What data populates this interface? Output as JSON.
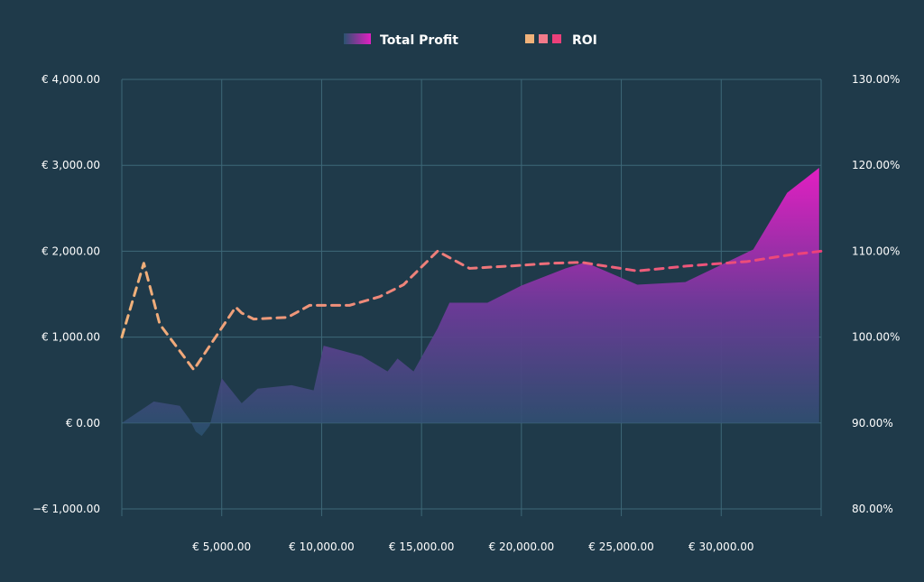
{
  "chart_data": {
    "type": "area",
    "title": "",
    "xlabel": "",
    "ylabel": "",
    "xlim": [
      0,
      35000
    ],
    "ylim": [
      -1000,
      4000
    ],
    "y2lim": [
      80,
      130
    ],
    "grid": true,
    "legend_position": "top-center",
    "x_ticks": [
      5000,
      10000,
      15000,
      20000,
      25000,
      30000
    ],
    "x_tick_labels": [
      "€ 5,000.00",
      "€ 10,000.00",
      "€ 15,000.00",
      "€ 20,000.00",
      "€ 25,000.00",
      "€ 30,000.00"
    ],
    "y_ticks": [
      4000,
      3000,
      2000,
      1000,
      0,
      -1000
    ],
    "y_tick_labels": [
      "€ 4,000.00",
      "€ 3,000.00",
      "€ 2,000.00",
      "€ 1,000.00",
      "€ 0.00",
      "−€ 1,000.00"
    ],
    "y2_ticks": [
      130,
      120,
      110,
      100,
      90,
      80
    ],
    "y2_tick_labels": [
      "130.00%",
      "120.00%",
      "110.00%",
      "100.00%",
      "90.00%",
      "80.00%"
    ],
    "series": [
      {
        "name": "Total Profit",
        "type": "area",
        "axis": "left",
        "x": [
          0,
          1600,
          2900,
          3400,
          3700,
          4000,
          4400,
          5000,
          6000,
          6800,
          8500,
          9600,
          10100,
          10900,
          12000,
          13300,
          13800,
          14600,
          15800,
          16400,
          18300,
          20000,
          22200,
          23200,
          25800,
          28200,
          31600,
          33300,
          34900
        ],
        "values": [
          0,
          250,
          200,
          40,
          -100,
          -150,
          -30,
          520,
          230,
          400,
          440,
          380,
          900,
          850,
          780,
          600,
          750,
          600,
          1100,
          1400,
          1400,
          1600,
          1800,
          1870,
          1610,
          1640,
          2020,
          2680,
          2970
        ],
        "colors": [
          "#2b5270",
          "#e21fc2"
        ]
      },
      {
        "name": "ROI",
        "type": "line",
        "axis": "right",
        "x": [
          0,
          1100,
          1900,
          3600,
          5700,
          6000,
          6600,
          8300,
          9400,
          11400,
          12900,
          14100,
          15800,
          17400,
          19600,
          21500,
          23000,
          25800,
          28400,
          31300,
          33500,
          35000
        ],
        "values": [
          100,
          108.6,
          101.5,
          96.2,
          103.5,
          102.8,
          102.1,
          102.3,
          103.7,
          103.7,
          104.7,
          106.1,
          110.0,
          108.0,
          108.3,
          108.6,
          108.7,
          107.7,
          108.3,
          108.8,
          109.6,
          110.0
        ],
        "colors": [
          "#f0b27a",
          "#ec407a"
        ]
      }
    ]
  }
}
